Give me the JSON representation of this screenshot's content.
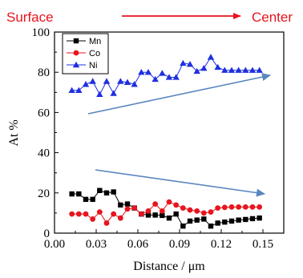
{
  "header": {
    "left_label": "Surface",
    "right_label": "Center",
    "color": "#e8141e"
  },
  "chart_data": {
    "type": "line",
    "xlabel": "Distance / μm",
    "ylabel": "At %",
    "xlim": [
      0.0,
      0.165
    ],
    "ylim": [
      0,
      100
    ],
    "x_ticks": [
      "0.00",
      "0.03",
      "0.06",
      "0.09",
      "0.12",
      "0.15"
    ],
    "x_tick_values": [
      0.0,
      0.03,
      0.06,
      0.09,
      0.12,
      0.15
    ],
    "y_ticks": [
      "0",
      "20",
      "40",
      "60",
      "80",
      "100"
    ],
    "y_tick_values": [
      0,
      20,
      40,
      60,
      80,
      100
    ],
    "legend_position": "top-left",
    "x": [
      0.0125,
      0.0175,
      0.0225,
      0.0275,
      0.0325,
      0.0375,
      0.0425,
      0.0475,
      0.0525,
      0.0575,
      0.0625,
      0.0675,
      0.0725,
      0.0775,
      0.0825,
      0.0875,
      0.0925,
      0.0975,
      0.1025,
      0.1075,
      0.1125,
      0.1175,
      0.1225,
      0.1275,
      0.1325,
      0.1375,
      0.1425,
      0.1475
    ],
    "series": [
      {
        "name": "Mn",
        "color": "#000000",
        "marker": "square",
        "values": [
          19.5,
          19.5,
          16.8,
          16.8,
          21.2,
          20.0,
          20.5,
          14.0,
          14.5,
          12.5,
          9.5,
          9.0,
          9.0,
          8.8,
          7.5,
          9.5,
          3.5,
          6.0,
          6.5,
          7.0,
          3.5,
          5.0,
          5.5,
          6.0,
          6.5,
          6.8,
          7.2,
          7.5
        ]
      },
      {
        "name": "Co",
        "color": "#e8141e",
        "marker": "circle",
        "values": [
          9.5,
          9.5,
          9.5,
          7.0,
          10.5,
          5.0,
          9.5,
          7.5,
          12.0,
          12.5,
          9.5,
          11.0,
          14.5,
          11.0,
          15.5,
          14.0,
          12.5,
          11.5,
          11.0,
          10.0,
          10.5,
          12.5,
          12.8,
          13.0,
          13.0,
          13.0,
          13.0,
          13.0
        ]
      },
      {
        "name": "Ni",
        "color": "#1f2fe0",
        "marker": "triangle",
        "values": [
          71.0,
          71.0,
          74.0,
          75.5,
          69.0,
          75.5,
          69.5,
          75.5,
          75.0,
          74.0,
          80.0,
          80.0,
          76.5,
          79.5,
          77.5,
          77.5,
          84.5,
          84.0,
          80.5,
          82.0,
          87.5,
          82.5,
          81.0,
          81.0,
          81.0,
          81.0,
          81.0,
          81.0
        ]
      }
    ],
    "trend_arrows": {
      "color": "#5a86c0"
    }
  }
}
